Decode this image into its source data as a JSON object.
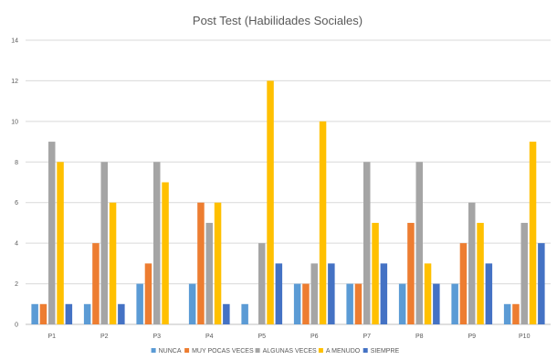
{
  "chart_data": {
    "type": "bar",
    "title": "Post Test (Habilidades Sociales)",
    "xlabel": "",
    "ylabel": "",
    "categories": [
      "P1",
      "P2",
      "P3",
      "P4",
      "P5",
      "P6",
      "P7",
      "P8",
      "P9",
      "P10"
    ],
    "ylim": [
      0,
      14
    ],
    "yticks": [
      0,
      2,
      4,
      6,
      8,
      10,
      12,
      14
    ],
    "grid": true,
    "legend_position": "bottom",
    "series": [
      {
        "name": "NUNCA",
        "color": "#5b9bd5",
        "values": [
          1,
          1,
          2,
          2,
          1,
          2,
          2,
          2,
          2,
          1
        ]
      },
      {
        "name": "MUY POCAS VECES",
        "color": "#ed7d31",
        "values": [
          1,
          4,
          3,
          6,
          0,
          2,
          2,
          5,
          4,
          1
        ]
      },
      {
        "name": "ALGUNAS VECES",
        "color": "#a5a5a5",
        "values": [
          9,
          8,
          8,
          5,
          4,
          3,
          8,
          8,
          6,
          5
        ]
      },
      {
        "name": "A MENUDO",
        "color": "#ffc000",
        "values": [
          8,
          6,
          7,
          6,
          12,
          10,
          5,
          3,
          5,
          9
        ]
      },
      {
        "name": "SIEMPRE",
        "color": "#4472c4",
        "values": [
          1,
          1,
          0,
          1,
          3,
          3,
          3,
          2,
          3,
          4
        ]
      }
    ]
  }
}
